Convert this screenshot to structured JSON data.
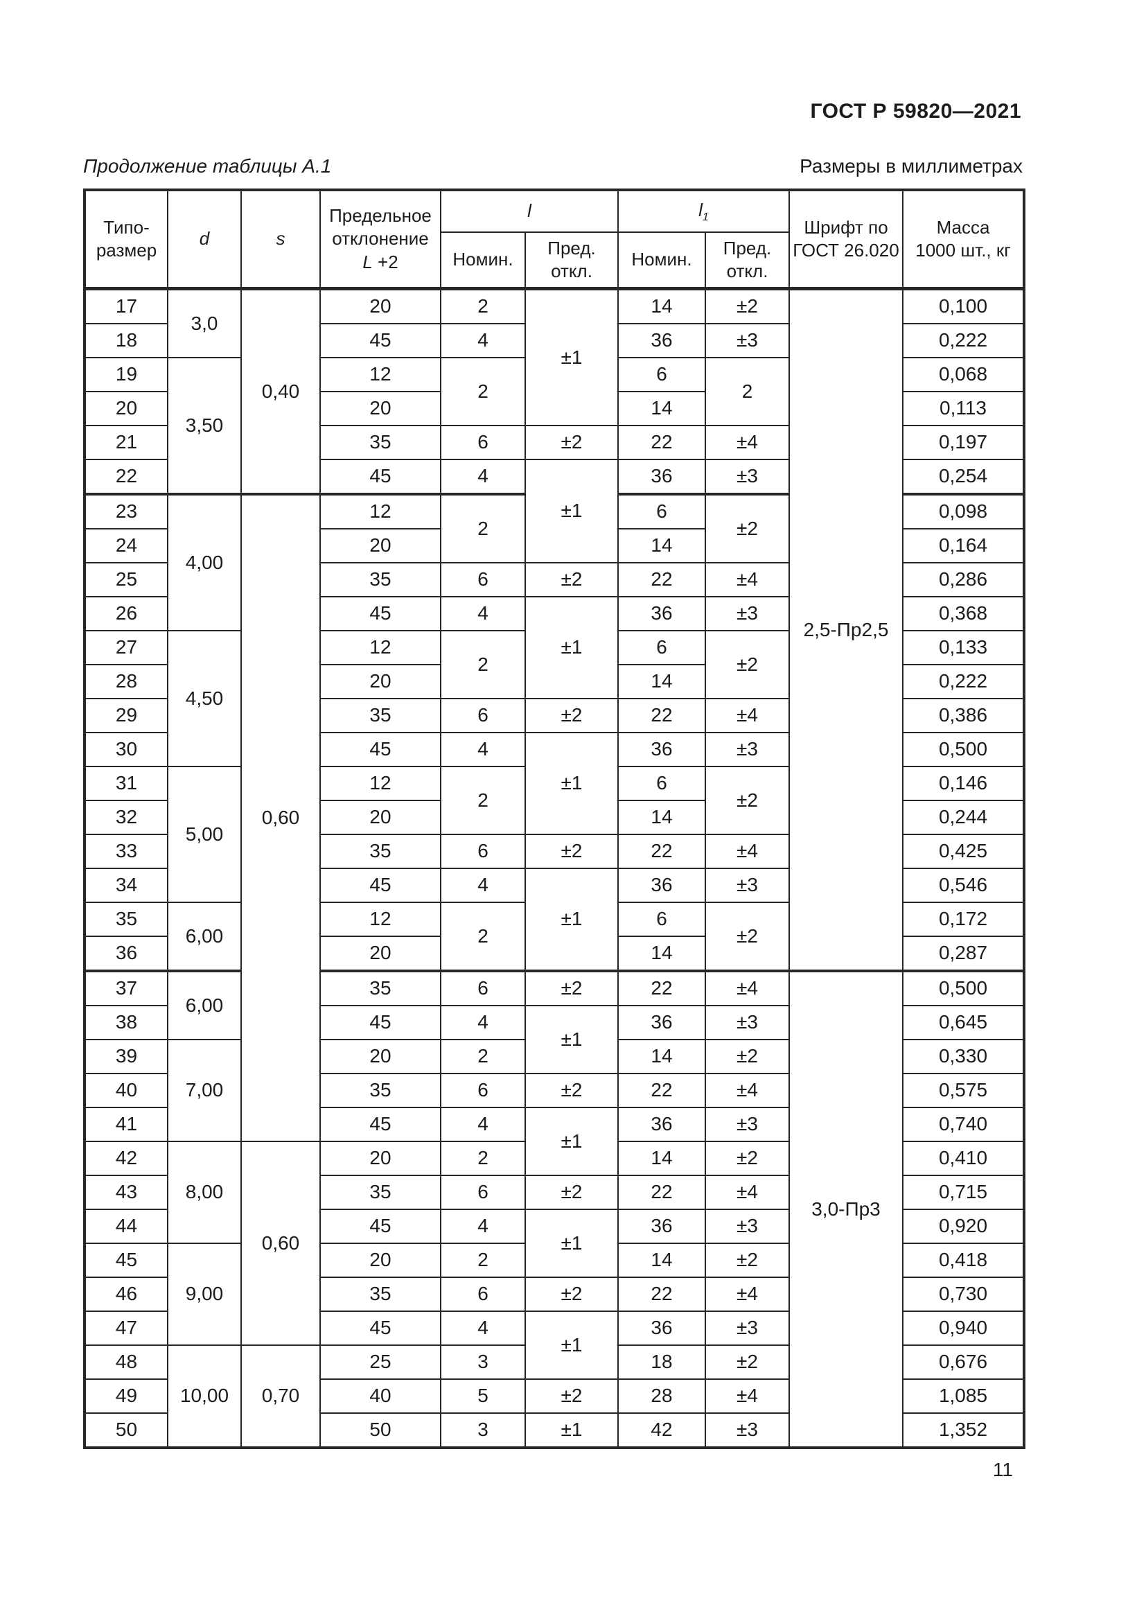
{
  "page": {
    "doc_number": "ГОСТ Р 59820—2021",
    "caption": "Продолжение таблицы А.1",
    "units": "Размеры в миллиметрах",
    "page_number": "11"
  },
  "table": {
    "header": {
      "typesize_lines": [
        "Типо-",
        "размер"
      ],
      "d": "d",
      "s": "s",
      "L_line1": "Предельное отклонение",
      "L_base": "L",
      "L_suffix": " +2",
      "l_base": "l",
      "l1_base": "l",
      "l1_sub": "1",
      "nominal": "Номин.",
      "deviation": "Пред. откл.",
      "font": "Шрифт по ГОСТ 26.020",
      "mass_lines": [
        "Масса",
        "1000 шт., кг"
      ]
    },
    "col_names": [
      "typesize",
      "d",
      "s",
      "L-deviation",
      "l-nominal",
      "l-deviation",
      "l1-nominal",
      "l1-deviation",
      "font",
      "mass"
    ],
    "rows": [
      {
        "cells": [
          {
            "v": "17"
          },
          {
            "v": "3,0",
            "rs": 2
          },
          {
            "v": "0,40",
            "rs": 6
          },
          {
            "v": "20"
          },
          {
            "v": "2"
          },
          {
            "v": "±1",
            "rs": 4
          },
          {
            "v": "14"
          },
          {
            "v": "±2"
          },
          {
            "v": "2,5-Пр2,5",
            "rs": 20
          },
          {
            "v": "0,100"
          }
        ]
      },
      {
        "cells": [
          {
            "v": "18"
          },
          {
            "v": "45"
          },
          {
            "v": "4"
          },
          {
            "v": "36"
          },
          {
            "v": "±3"
          },
          {
            "v": "0,222"
          }
        ]
      },
      {
        "cells": [
          {
            "v": "19"
          },
          {
            "v": "3,50",
            "rs": 4
          },
          {
            "v": "12"
          },
          {
            "v": "2",
            "rs": 2
          },
          {
            "v": "6"
          },
          {
            "v": "2",
            "rs": 2
          },
          {
            "v": "0,068"
          }
        ]
      },
      {
        "cells": [
          {
            "v": "20"
          },
          {
            "v": "20"
          },
          {
            "v": "14"
          },
          {
            "v": "0,113"
          }
        ]
      },
      {
        "cells": [
          {
            "v": "21"
          },
          {
            "v": "35"
          },
          {
            "v": "6"
          },
          {
            "v": "±2"
          },
          {
            "v": "22"
          },
          {
            "v": "±4"
          },
          {
            "v": "0,197"
          }
        ]
      },
      {
        "cells": [
          {
            "v": "22"
          },
          {
            "v": "45"
          },
          {
            "v": "4"
          },
          {
            "v": "±1",
            "rs": 3
          },
          {
            "v": "36"
          },
          {
            "v": "±3"
          },
          {
            "v": "0,254"
          }
        ]
      },
      {
        "group": true,
        "cells": [
          {
            "v": "23"
          },
          {
            "v": "4,00",
            "rs": 4
          },
          {
            "v": "0,60",
            "rs": 19
          },
          {
            "v": "12"
          },
          {
            "v": "2",
            "rs": 2
          },
          {
            "v": "6"
          },
          {
            "v": "±2",
            "rs": 2
          },
          {
            "v": "0,098"
          }
        ]
      },
      {
        "cells": [
          {
            "v": "24"
          },
          {
            "v": "20"
          },
          {
            "v": "14"
          },
          {
            "v": "0,164"
          }
        ]
      },
      {
        "cells": [
          {
            "v": "25"
          },
          {
            "v": "35"
          },
          {
            "v": "6"
          },
          {
            "v": "±2"
          },
          {
            "v": "22"
          },
          {
            "v": "±4"
          },
          {
            "v": "0,286"
          }
        ]
      },
      {
        "cells": [
          {
            "v": "26"
          },
          {
            "v": "45"
          },
          {
            "v": "4"
          },
          {
            "v": "±1",
            "rs": 3
          },
          {
            "v": "36"
          },
          {
            "v": "±3"
          },
          {
            "v": "0,368"
          }
        ]
      },
      {
        "cells": [
          {
            "v": "27"
          },
          {
            "v": "4,50",
            "rs": 4
          },
          {
            "v": "12"
          },
          {
            "v": "2",
            "rs": 2
          },
          {
            "v": "6"
          },
          {
            "v": "±2",
            "rs": 2
          },
          {
            "v": "0,133"
          }
        ]
      },
      {
        "cells": [
          {
            "v": "28"
          },
          {
            "v": "20"
          },
          {
            "v": "14"
          },
          {
            "v": "0,222"
          }
        ]
      },
      {
        "cells": [
          {
            "v": "29"
          },
          {
            "v": "35"
          },
          {
            "v": "6"
          },
          {
            "v": "±2"
          },
          {
            "v": "22"
          },
          {
            "v": "±4"
          },
          {
            "v": "0,386"
          }
        ]
      },
      {
        "cells": [
          {
            "v": "30"
          },
          {
            "v": "45"
          },
          {
            "v": "4"
          },
          {
            "v": "±1",
            "rs": 3
          },
          {
            "v": "36"
          },
          {
            "v": "±3"
          },
          {
            "v": "0,500"
          }
        ]
      },
      {
        "cells": [
          {
            "v": "31"
          },
          {
            "v": "5,00",
            "rs": 4
          },
          {
            "v": "12"
          },
          {
            "v": "2",
            "rs": 2
          },
          {
            "v": "6"
          },
          {
            "v": "±2",
            "rs": 2
          },
          {
            "v": "0,146"
          }
        ]
      },
      {
        "cells": [
          {
            "v": "32"
          },
          {
            "v": "20"
          },
          {
            "v": "14"
          },
          {
            "v": "0,244"
          }
        ]
      },
      {
        "cells": [
          {
            "v": "33"
          },
          {
            "v": "35"
          },
          {
            "v": "6"
          },
          {
            "v": "±2"
          },
          {
            "v": "22"
          },
          {
            "v": "±4"
          },
          {
            "v": "0,425"
          }
        ]
      },
      {
        "cells": [
          {
            "v": "34"
          },
          {
            "v": "45"
          },
          {
            "v": "4"
          },
          {
            "v": "±1",
            "rs": 3
          },
          {
            "v": "36"
          },
          {
            "v": "±3"
          },
          {
            "v": "0,546"
          }
        ]
      },
      {
        "cells": [
          {
            "v": "35"
          },
          {
            "v": "6,00",
            "rs": 2
          },
          {
            "v": "12"
          },
          {
            "v": "2",
            "rs": 2
          },
          {
            "v": "6"
          },
          {
            "v": "±2",
            "rs": 2
          },
          {
            "v": "0,172"
          }
        ]
      },
      {
        "cells": [
          {
            "v": "36"
          },
          {
            "v": "20"
          },
          {
            "v": "14"
          },
          {
            "v": "0,287"
          }
        ]
      },
      {
        "group": true,
        "cells": [
          {
            "v": "37"
          },
          {
            "v": "6,00",
            "rs": 2
          },
          {
            "v": "35"
          },
          {
            "v": "6"
          },
          {
            "v": "±2"
          },
          {
            "v": "22"
          },
          {
            "v": "±4"
          },
          {
            "v": "3,0-Пр3",
            "rs": 14
          },
          {
            "v": "0,500"
          }
        ]
      },
      {
        "cells": [
          {
            "v": "38"
          },
          {
            "v": "45"
          },
          {
            "v": "4"
          },
          {
            "v": "±1",
            "rs": 2
          },
          {
            "v": "36"
          },
          {
            "v": "±3"
          },
          {
            "v": "0,645"
          }
        ]
      },
      {
        "cells": [
          {
            "v": "39"
          },
          {
            "v": "7,00",
            "rs": 3
          },
          {
            "v": "20"
          },
          {
            "v": "2"
          },
          {
            "v": "14"
          },
          {
            "v": "±2"
          },
          {
            "v": "0,330"
          }
        ]
      },
      {
        "cells": [
          {
            "v": "40"
          },
          {
            "v": "35"
          },
          {
            "v": "6"
          },
          {
            "v": "±2"
          },
          {
            "v": "22"
          },
          {
            "v": "±4"
          },
          {
            "v": "0,575"
          }
        ]
      },
      {
        "cells": [
          {
            "v": "41"
          },
          {
            "v": "45"
          },
          {
            "v": "4"
          },
          {
            "v": "±1",
            "rs": 2
          },
          {
            "v": "36"
          },
          {
            "v": "±3"
          },
          {
            "v": "0,740"
          }
        ]
      },
      {
        "cells": [
          {
            "v": "42"
          },
          {
            "v": "8,00",
            "rs": 3
          },
          {
            "v": "0,60",
            "rs": 6
          },
          {
            "v": "20"
          },
          {
            "v": "2"
          },
          {
            "v": "14"
          },
          {
            "v": "±2"
          },
          {
            "v": "0,410"
          }
        ]
      },
      {
        "cells": [
          {
            "v": "43"
          },
          {
            "v": "35"
          },
          {
            "v": "6"
          },
          {
            "v": "±2"
          },
          {
            "v": "22"
          },
          {
            "v": "±4"
          },
          {
            "v": "0,715"
          }
        ]
      },
      {
        "cells": [
          {
            "v": "44"
          },
          {
            "v": "45"
          },
          {
            "v": "4"
          },
          {
            "v": "±1",
            "rs": 2
          },
          {
            "v": "36"
          },
          {
            "v": "±3"
          },
          {
            "v": "0,920"
          }
        ]
      },
      {
        "cells": [
          {
            "v": "45"
          },
          {
            "v": "9,00",
            "rs": 3
          },
          {
            "v": "20"
          },
          {
            "v": "2"
          },
          {
            "v": "14"
          },
          {
            "v": "±2"
          },
          {
            "v": "0,418"
          }
        ]
      },
      {
        "cells": [
          {
            "v": "46"
          },
          {
            "v": "35"
          },
          {
            "v": "6"
          },
          {
            "v": "±2"
          },
          {
            "v": "22"
          },
          {
            "v": "±4"
          },
          {
            "v": "0,730"
          }
        ]
      },
      {
        "cells": [
          {
            "v": "47"
          },
          {
            "v": "45"
          },
          {
            "v": "4"
          },
          {
            "v": "±1",
            "rs": 2
          },
          {
            "v": "36"
          },
          {
            "v": "±3"
          },
          {
            "v": "0,940"
          }
        ]
      },
      {
        "cells": [
          {
            "v": "48"
          },
          {
            "v": "10,00",
            "rs": 3
          },
          {
            "v": "0,70",
            "rs": 3
          },
          {
            "v": "25"
          },
          {
            "v": "3"
          },
          {
            "v": "18"
          },
          {
            "v": "±2"
          },
          {
            "v": "0,676"
          }
        ]
      },
      {
        "cells": [
          {
            "v": "49"
          },
          {
            "v": "40"
          },
          {
            "v": "5"
          },
          {
            "v": "±2"
          },
          {
            "v": "28"
          },
          {
            "v": "±4"
          },
          {
            "v": "1,085"
          }
        ]
      },
      {
        "cells": [
          {
            "v": "50"
          },
          {
            "v": "50"
          },
          {
            "v": "3"
          },
          {
            "v": "±1"
          },
          {
            "v": "42"
          },
          {
            "v": "±3"
          },
          {
            "v": "1,352"
          }
        ]
      }
    ]
  }
}
